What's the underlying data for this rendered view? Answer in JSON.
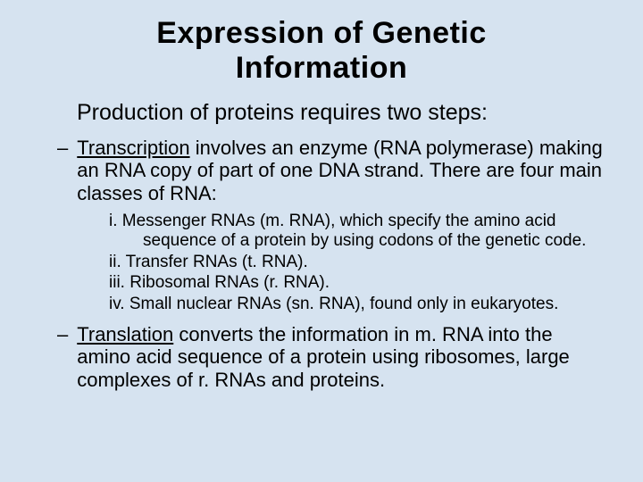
{
  "colors": {
    "background": "#d6e3f0",
    "text": "#000000"
  },
  "typography": {
    "title_font": "Arial Black",
    "body_font": "Arial",
    "title_size_pt": 34,
    "subtitle_size_pt": 25,
    "body_size_pt": 22,
    "sublist_size_pt": 19
  },
  "title_line1": "Expression of Genetic",
  "title_line2": "Information",
  "subtitle": "Production of proteins requires two steps:",
  "dash": "–",
  "bullet1_term": "Transcription",
  "bullet1_rest": " involves an enzyme (RNA polymerase) making an RNA copy of part of one DNA strand. There are four main classes of RNA:",
  "sub_i": "i. Messenger RNAs (m. RNA), which specify the amino acid sequence of a protein by using codons of the genetic code.",
  "sub_ii": "ii. Transfer RNAs (t. RNA).",
  "sub_iii": "iii. Ribosomal RNAs (r. RNA).",
  "sub_iv": "iv. Small nuclear RNAs (sn. RNA), found only in eukaryotes.",
  "bullet2_term": "Translation",
  "bullet2_rest": " converts the information in m. RNA into the amino acid sequence of a protein using ribosomes, large complexes of r. RNAs and proteins."
}
